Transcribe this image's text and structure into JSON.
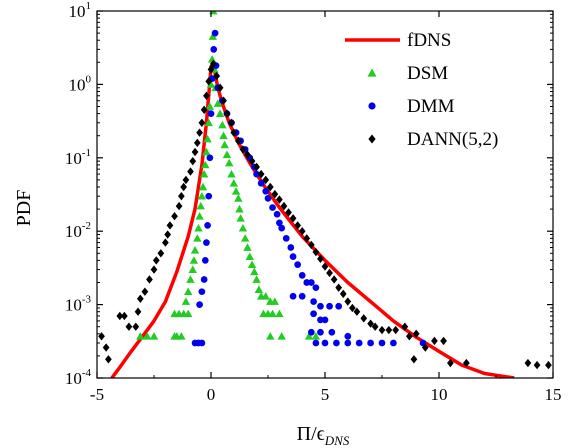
{
  "chart_data": {
    "type": "scatter",
    "title": "",
    "xlabel": "Π/ϵ",
    "xlabel_sub": "DNS",
    "ylabel": "PDF",
    "xlim": [
      -5,
      15
    ],
    "ylim_log10": [
      -4,
      1
    ],
    "yscale": "log",
    "grid": false,
    "legend_position": "top-right",
    "x_ticks": [
      -5,
      0,
      5,
      10,
      15
    ],
    "x_tick_labels": [
      "-5",
      "0",
      "5",
      "10",
      "15"
    ],
    "y_ticks_log10": [
      -4,
      -3,
      -2,
      -1,
      0,
      1
    ],
    "y_tick_labels": [
      {
        "base": "10",
        "exp": "-4"
      },
      {
        "base": "10",
        "exp": "-3"
      },
      {
        "base": "10",
        "exp": "-2"
      },
      {
        "base": "10",
        "exp": "-1"
      },
      {
        "base": "10",
        "exp": "0"
      },
      {
        "base": "10",
        "exp": "1"
      }
    ],
    "series": [
      {
        "name": "fDNS",
        "kind": "line",
        "color": "#ff0000",
        "marker": "none",
        "points": [
          [
            -4.35,
            0.0001
          ],
          [
            -4,
            0.00014
          ],
          [
            -3.5,
            0.00023
          ],
          [
            -3,
            0.00037
          ],
          [
            -2.5,
            0.0006
          ],
          [
            -2,
            0.0011
          ],
          [
            -1.5,
            0.0028
          ],
          [
            -1,
            0.0085
          ],
          [
            -0.7,
            0.02
          ],
          [
            -0.4,
            0.08
          ],
          [
            -0.2,
            0.3
          ],
          [
            -0.05,
            1.1
          ],
          [
            0,
            1.75
          ],
          [
            0.15,
            1.6
          ],
          [
            0.3,
            0.9
          ],
          [
            0.5,
            0.55
          ],
          [
            0.8,
            0.3
          ],
          [
            1.2,
            0.16
          ],
          [
            1.7,
            0.085
          ],
          [
            2.3,
            0.043
          ],
          [
            3,
            0.021
          ],
          [
            4,
            0.0085
          ],
          [
            5,
            0.004
          ],
          [
            6,
            0.002
          ],
          [
            7,
            0.0011
          ],
          [
            8,
            0.0006
          ],
          [
            9,
            0.00036
          ],
          [
            10,
            0.00023
          ],
          [
            11,
            0.00015
          ],
          [
            12,
            0.000115
          ],
          [
            13.3,
            0.0001
          ]
        ]
      },
      {
        "name": "DSM",
        "kind": "scatter",
        "color": "#22cc22",
        "marker": "triangle",
        "points": [
          [
            -3.1,
            0.00037
          ],
          [
            -2.8,
            0.00037
          ],
          [
            -2.5,
            0.00037
          ],
          [
            -1.6,
            0.00037
          ],
          [
            -1.5,
            0.00037
          ],
          [
            -1.3,
            0.00037
          ],
          [
            -1.6,
            0.00075
          ],
          [
            -1.4,
            0.00075
          ],
          [
            -1.2,
            0.00075
          ],
          [
            -1.0,
            0.00075
          ],
          [
            -1.1,
            0.0011
          ],
          [
            -1.0,
            0.0015
          ],
          [
            -0.9,
            0.0022
          ],
          [
            -0.8,
            0.003
          ],
          [
            -0.75,
            0.004
          ],
          [
            -0.7,
            0.0055
          ],
          [
            -0.6,
            0.008
          ],
          [
            -0.55,
            0.011
          ],
          [
            -0.5,
            0.016
          ],
          [
            -0.45,
            0.022
          ],
          [
            -0.4,
            0.03
          ],
          [
            -0.35,
            0.04
          ],
          [
            -0.3,
            0.06
          ],
          [
            -0.25,
            0.08
          ],
          [
            -0.2,
            0.12
          ],
          [
            -0.15,
            0.18
          ],
          [
            -0.1,
            0.3
          ],
          [
            -0.05,
            0.5
          ],
          [
            0,
            1.0
          ],
          [
            0.05,
            2.2
          ],
          [
            0.08,
            4.5
          ],
          [
            0.1,
            10
          ],
          [
            0.15,
            1.6
          ],
          [
            0.2,
            0.9
          ],
          [
            0.3,
            0.55
          ],
          [
            0.4,
            0.4
          ],
          [
            0.5,
            0.28
          ],
          [
            0.55,
            0.2
          ],
          [
            0.6,
            0.15
          ],
          [
            0.7,
            0.11
          ],
          [
            0.8,
            0.085
          ],
          [
            0.9,
            0.06
          ],
          [
            1.0,
            0.045
          ],
          [
            1.1,
            0.035
          ],
          [
            1.2,
            0.028
          ],
          [
            1.25,
            0.02
          ],
          [
            1.3,
            0.015
          ],
          [
            1.4,
            0.011
          ],
          [
            1.5,
            0.008
          ],
          [
            1.6,
            0.006
          ],
          [
            1.7,
            0.0045
          ],
          [
            1.8,
            0.0035
          ],
          [
            1.9,
            0.0028
          ],
          [
            2.0,
            0.0022
          ],
          [
            2.1,
            0.0016
          ],
          [
            2.2,
            0.0013
          ],
          [
            2.4,
            0.0013
          ],
          [
            2.6,
            0.0011
          ],
          [
            2.8,
            0.0011
          ],
          [
            2.3,
            0.00075
          ],
          [
            2.5,
            0.00075
          ],
          [
            2.7,
            0.00075
          ],
          [
            3.0,
            0.00075
          ],
          [
            2.6,
            0.00037
          ],
          [
            3.1,
            0.00037
          ],
          [
            4.6,
            0.00037
          ],
          [
            4.3,
            0.00037
          ]
        ]
      },
      {
        "name": "DMM",
        "kind": "scatter",
        "color": "#0000ee",
        "marker": "circle",
        "points": [
          [
            -0.7,
            0.0003
          ],
          [
            -0.55,
            0.0003
          ],
          [
            -0.4,
            0.0003
          ],
          [
            -0.5,
            0.001
          ],
          [
            -0.4,
            0.0015
          ],
          [
            -0.3,
            0.0022
          ],
          [
            -0.25,
            0.004
          ],
          [
            -0.2,
            0.007
          ],
          [
            -0.15,
            0.012
          ],
          [
            -0.1,
            0.03
          ],
          [
            -0.05,
            0.1
          ],
          [
            0,
            0.4
          ],
          [
            0.05,
            1.2
          ],
          [
            0.12,
            3.0
          ],
          [
            0.18,
            5.0
          ],
          [
            0.22,
            1.8
          ],
          [
            0.3,
            0.9
          ],
          [
            0.5,
            0.6
          ],
          [
            0.7,
            0.4
          ],
          [
            0.9,
            0.3
          ],
          [
            1.1,
            0.22
          ],
          [
            1.3,
            0.17
          ],
          [
            1.5,
            0.13
          ],
          [
            1.7,
            0.1
          ],
          [
            1.9,
            0.075
          ],
          [
            2.0,
            0.06
          ],
          [
            2.2,
            0.045
          ],
          [
            2.4,
            0.035
          ],
          [
            2.5,
            0.028
          ],
          [
            2.7,
            0.021
          ],
          [
            2.9,
            0.017
          ],
          [
            3.0,
            0.013
          ],
          [
            3.1,
            0.011
          ],
          [
            3.3,
            0.008
          ],
          [
            3.5,
            0.006
          ],
          [
            3.6,
            0.0045
          ],
          [
            3.8,
            0.0035
          ],
          [
            4.0,
            0.0025
          ],
          [
            4.2,
            0.002
          ],
          [
            4.4,
            0.002
          ],
          [
            4.6,
            0.0017
          ],
          [
            3.6,
            0.0013
          ],
          [
            4.0,
            0.0013
          ],
          [
            4.5,
            0.0011
          ],
          [
            4.8,
            0.00095
          ],
          [
            5.2,
            0.00095
          ],
          [
            5.6,
            0.00095
          ],
          [
            4.5,
            0.00075
          ],
          [
            4.8,
            0.00062
          ],
          [
            5.0,
            0.00062
          ],
          [
            4.4,
            0.00042
          ],
          [
            4.8,
            0.00042
          ],
          [
            5.3,
            0.00042
          ],
          [
            6.0,
            0.00037
          ],
          [
            4.6,
            0.0003
          ],
          [
            5.0,
            0.0003
          ],
          [
            5.5,
            0.0003
          ],
          [
            6.0,
            0.0003
          ],
          [
            6.5,
            0.0003
          ],
          [
            7.0,
            0.0003
          ],
          [
            7.5,
            0.0003
          ],
          [
            8.0,
            0.0003
          ],
          [
            9.3,
            0.0003
          ]
        ]
      },
      {
        "name": "DANN(5,2)",
        "kind": "scatter",
        "color": "#000000",
        "marker": "diamond",
        "points": [
          [
            -4.8,
            0.00037
          ],
          [
            -4.6,
            0.00026
          ],
          [
            -4.5,
            0.00018
          ],
          [
            -4.0,
            0.0007
          ],
          [
            -3.8,
            0.0007
          ],
          [
            -3.6,
            0.0005
          ],
          [
            -3.3,
            0.0005
          ],
          [
            -3.2,
            0.0008
          ],
          [
            -3.1,
            0.0012
          ],
          [
            -2.9,
            0.0015
          ],
          [
            -2.7,
            0.0022
          ],
          [
            -2.5,
            0.003
          ],
          [
            -2.4,
            0.004
          ],
          [
            -2.2,
            0.005
          ],
          [
            -2.0,
            0.007
          ],
          [
            -1.9,
            0.009
          ],
          [
            -1.8,
            0.012
          ],
          [
            -1.6,
            0.016
          ],
          [
            -1.4,
            0.022
          ],
          [
            -1.3,
            0.03
          ],
          [
            -1.2,
            0.04
          ],
          [
            -1.1,
            0.05
          ],
          [
            -0.9,
            0.065
          ],
          [
            -0.8,
            0.09
          ],
          [
            -0.7,
            0.12
          ],
          [
            -0.6,
            0.16
          ],
          [
            -0.5,
            0.22
          ],
          [
            -0.4,
            0.3
          ],
          [
            -0.3,
            0.45
          ],
          [
            -0.2,
            0.7
          ],
          [
            -0.1,
            1.1
          ],
          [
            0,
            1.6
          ],
          [
            0.1,
            1.9
          ],
          [
            0.25,
            1.3
          ],
          [
            0.4,
            0.9
          ],
          [
            0.55,
            0.6
          ],
          [
            0.7,
            0.4
          ],
          [
            0.9,
            0.3
          ],
          [
            1.0,
            0.22
          ],
          [
            1.2,
            0.17
          ],
          [
            1.4,
            0.13
          ],
          [
            1.6,
            0.11
          ],
          [
            1.8,
            0.09
          ],
          [
            2.0,
            0.075
          ],
          [
            2.2,
            0.06
          ],
          [
            2.4,
            0.05
          ],
          [
            2.6,
            0.04
          ],
          [
            2.8,
            0.032
          ],
          [
            3.0,
            0.027
          ],
          [
            3.2,
            0.022
          ],
          [
            3.4,
            0.018
          ],
          [
            3.6,
            0.015
          ],
          [
            3.8,
            0.012
          ],
          [
            4.0,
            0.01
          ],
          [
            4.2,
            0.008
          ],
          [
            4.4,
            0.0065
          ],
          [
            4.6,
            0.0052
          ],
          [
            4.8,
            0.0042
          ],
          [
            5.0,
            0.0033
          ],
          [
            5.2,
            0.0027
          ],
          [
            5.4,
            0.0022
          ],
          [
            5.6,
            0.0017
          ],
          [
            5.8,
            0.0014
          ],
          [
            6.0,
            0.0011
          ],
          [
            6.2,
            0.0009
          ],
          [
            6.4,
            0.0008
          ],
          [
            6.7,
            0.00065
          ],
          [
            7.0,
            0.00055
          ],
          [
            7.2,
            0.0005
          ],
          [
            7.5,
            0.00045
          ],
          [
            7.8,
            0.00045
          ],
          [
            8.1,
            0.00045
          ],
          [
            8.5,
            0.0005
          ],
          [
            8.7,
            0.00037
          ],
          [
            9.0,
            0.0004
          ],
          [
            9.4,
            0.00026
          ],
          [
            9.8,
            0.00032
          ],
          [
            10.2,
            0.00032
          ],
          [
            8.9,
            0.00018
          ],
          [
            10.5,
            0.00016
          ],
          [
            11.2,
            0.00016
          ],
          [
            13.9,
            0.00016
          ],
          [
            14.3,
            0.00015
          ],
          [
            14.8,
            0.00015
          ]
        ]
      }
    ]
  }
}
